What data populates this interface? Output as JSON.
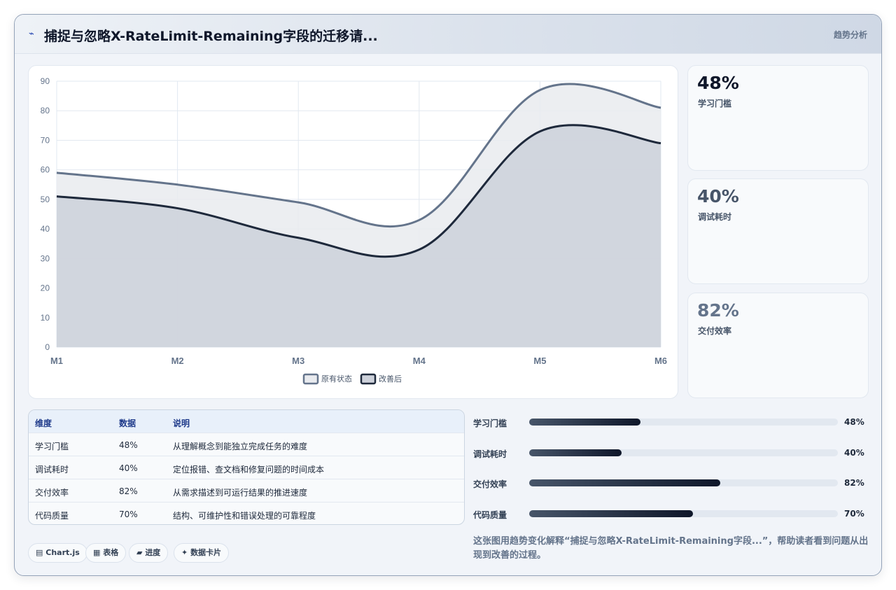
{
  "header": {
    "title": "捕捉与忽略X-RateLimit-Remaining字段的迁移请...",
    "tag": "趋势分析"
  },
  "chart_data": {
    "type": "area",
    "categories": [
      "M1",
      "M2",
      "M3",
      "M4",
      "M5",
      "M6"
    ],
    "series": [
      {
        "name": "原有状态",
        "values": [
          59,
          55,
          49,
          43,
          87,
          81
        ]
      },
      {
        "name": "改善后",
        "values": [
          51,
          47,
          37,
          33,
          73,
          69
        ]
      }
    ],
    "yticks": [
      "0",
      "10",
      "20",
      "30",
      "40",
      "50",
      "60",
      "70",
      "80",
      "90"
    ],
    "ylim": [
      0,
      90
    ],
    "grid": true,
    "legend_position": "bottom",
    "colors": {
      "original_line": "#64748b",
      "original_fill": "#e9ebef",
      "improved_line": "#1e293b",
      "improved_fill": "#cdd1da"
    }
  },
  "stats": [
    {
      "value": "48%",
      "label": "学习门槛",
      "color": "#0f172a"
    },
    {
      "value": "40%",
      "label": "调试耗时",
      "color": "#475569"
    },
    {
      "value": "82%",
      "label": "交付效率",
      "color": "#64748b"
    }
  ],
  "table": {
    "headers": [
      "维度",
      "数据",
      "说明"
    ],
    "rows": [
      [
        "学习门槛",
        "48%",
        "从理解概念到能独立完成任务的难度"
      ],
      [
        "调试耗时",
        "40%",
        "定位报错、查文档和修复问题的时间成本"
      ],
      [
        "交付效率",
        "82%",
        "从需求描述到可运行结果的推进速度"
      ],
      [
        "代码质量",
        "70%",
        "结构、可维护性和错误处理的可靠程度"
      ]
    ]
  },
  "bars": [
    {
      "label": "学习门槛",
      "value": "48%",
      "fraction": 0.36
    },
    {
      "label": "调试耗时",
      "value": "40%",
      "fraction": 0.3
    },
    {
      "label": "交付效率",
      "value": "82%",
      "fraction": 0.62
    },
    {
      "label": "代码质量",
      "value": "70%",
      "fraction": 0.53
    }
  ],
  "caption": "这张图用趋势变化解释“捕捉与忽略X-RateLimit-Remaining字段...”，帮助读者看到问题从出现到改善的过程。",
  "pills": [
    {
      "icon": "▤",
      "label": "Chart.js"
    },
    {
      "icon": "▦",
      "label": "表格"
    },
    {
      "icon": "▰",
      "label": "进度"
    },
    {
      "icon": "✦",
      "label": "数据卡片"
    }
  ]
}
